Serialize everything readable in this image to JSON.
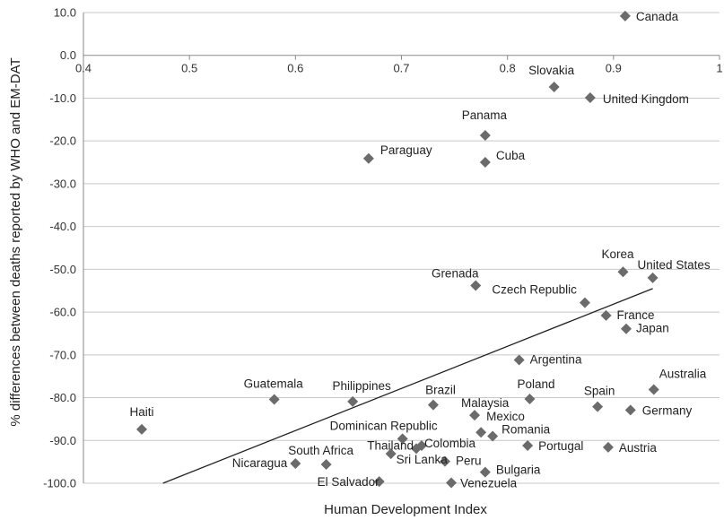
{
  "chart_data": {
    "type": "scatter",
    "title": "",
    "xlabel": "Human Development Index",
    "ylabel": "% differences between deaths reported by WHO and EM-DAT",
    "xlim": [
      0.4,
      1.0
    ],
    "ylim": [
      -100,
      10
    ],
    "x_ticks": [
      "0.4",
      "0.5",
      "0.6",
      "0.7",
      "0.8",
      "0.9",
      "1"
    ],
    "y_ticks": [
      "10.0",
      "0.0",
      "-10.0",
      "-20.0",
      "-30.0",
      "-40.0",
      "-50.0",
      "-60.0",
      "-70.0",
      "-80.0",
      "-90.0",
      "-100.0"
    ],
    "grid": "horizontal",
    "marker_color": "#6b6b6b",
    "trendline": {
      "x": [
        0.475,
        0.937
      ],
      "y": [
        -100,
        -54.5
      ]
    },
    "points": [
      {
        "label": "Canada",
        "x": 0.911,
        "y": 9.2
      },
      {
        "label": "Slovakia",
        "x": 0.844,
        "y": -7.4
      },
      {
        "label": "United Kingdom",
        "x": 0.878,
        "y": -9.9
      },
      {
        "label": "Panama",
        "x": 0.779,
        "y": -18.7
      },
      {
        "label": "Paraguay",
        "x": 0.669,
        "y": -24.1
      },
      {
        "label": "Cuba",
        "x": 0.779,
        "y": -25.0
      },
      {
        "label": "Korea",
        "x": 0.909,
        "y": -50.6
      },
      {
        "label": "United States",
        "x": 0.937,
        "y": -52.0
      },
      {
        "label": "Grenada",
        "x": 0.77,
        "y": -53.8
      },
      {
        "label": "Czech Republic",
        "x": 0.873,
        "y": -57.8
      },
      {
        "label": "France",
        "x": 0.893,
        "y": -60.8
      },
      {
        "label": "Japan",
        "x": 0.912,
        "y": -63.9
      },
      {
        "label": "Argentina",
        "x": 0.811,
        "y": -71.2
      },
      {
        "label": "Australia",
        "x": 0.938,
        "y": -78.1
      },
      {
        "label": "Guatemala",
        "x": 0.58,
        "y": -80.4
      },
      {
        "label": "Philippines",
        "x": 0.654,
        "y": -80.9
      },
      {
        "label": "Poland",
        "x": 0.821,
        "y": -80.3
      },
      {
        "label": "Brazil",
        "x": 0.73,
        "y": -81.7
      },
      {
        "label": "Spain",
        "x": 0.885,
        "y": -82.1
      },
      {
        "label": "Germany",
        "x": 0.916,
        "y": -82.9
      },
      {
        "label": "Haiti",
        "x": 0.455,
        "y": -87.4
      },
      {
        "label": "Malaysia",
        "x": 0.769,
        "y": -84.1
      },
      {
        "label": "Mexico",
        "x": 0.775,
        "y": -88.1
      },
      {
        "label": "Romania",
        "x": 0.786,
        "y": -89.0
      },
      {
        "label": "Dominican Republic",
        "x": 0.701,
        "y": -89.6
      },
      {
        "label": "Colombia",
        "x": 0.719,
        "y": -91.2
      },
      {
        "label": "Portugal",
        "x": 0.819,
        "y": -91.2
      },
      {
        "label": "Austria",
        "x": 0.895,
        "y": -91.6
      },
      {
        "label": "Thailand",
        "x": 0.714,
        "y": -91.9
      },
      {
        "label": "Sri Lanka",
        "x": 0.69,
        "y": -93.1
      },
      {
        "label": "Peru",
        "x": 0.741,
        "y": -94.9
      },
      {
        "label": "Nicaragua",
        "x": 0.6,
        "y": -95.4
      },
      {
        "label": "South Africa",
        "x": 0.629,
        "y": -95.6
      },
      {
        "label": "Bulgaria",
        "x": 0.779,
        "y": -97.4
      },
      {
        "label": "El Salvador",
        "x": 0.679,
        "y": -99.6
      },
      {
        "label": "Venezuela",
        "x": 0.747,
        "y": -99.9
      }
    ]
  }
}
